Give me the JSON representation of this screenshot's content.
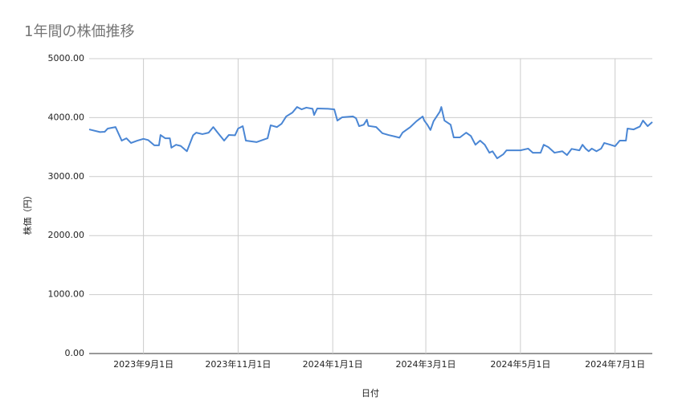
{
  "chart_data": {
    "type": "line",
    "title": "1年間の株価推移",
    "x_label": "日付",
    "y_label": "株価（円）",
    "x": [
      "2023-07-28",
      "2023-08-04",
      "2023-08-07",
      "2023-08-09",
      "2023-08-14",
      "2023-08-18",
      "2023-08-21",
      "2023-08-24",
      "2023-08-28",
      "2023-09-01",
      "2023-09-04",
      "2023-09-08",
      "2023-09-11",
      "2023-09-12",
      "2023-09-15",
      "2023-09-18",
      "2023-09-19",
      "2023-09-22",
      "2023-09-25",
      "2023-09-29",
      "2023-10-03",
      "2023-10-05",
      "2023-10-09",
      "2023-10-13",
      "2023-10-16",
      "2023-10-19",
      "2023-10-23",
      "2023-10-26",
      "2023-10-30",
      "2023-11-01",
      "2023-11-04",
      "2023-11-06",
      "2023-11-13",
      "2023-11-20",
      "2023-11-22",
      "2023-11-26",
      "2023-11-29",
      "2023-12-02",
      "2023-12-06",
      "2023-12-09",
      "2023-12-12",
      "2023-12-15",
      "2023-12-19",
      "2023-12-20",
      "2023-12-22",
      "2023-12-29",
      "2024-01-02",
      "2024-01-04",
      "2024-01-07",
      "2024-01-14",
      "2024-01-16",
      "2024-01-18",
      "2024-01-21",
      "2024-01-23",
      "2024-01-24",
      "2024-01-29",
      "2024-02-02",
      "2024-02-06",
      "2024-02-10",
      "2024-02-13",
      "2024-02-15",
      "2024-02-20",
      "2024-02-24",
      "2024-02-28",
      "2024-02-29",
      "2024-03-02",
      "2024-03-04",
      "2024-03-06",
      "2024-03-10",
      "2024-03-11",
      "2024-03-13",
      "2024-03-17",
      "2024-03-19",
      "2024-03-23",
      "2024-03-27",
      "2024-03-30",
      "2024-04-02",
      "2024-04-05",
      "2024-04-08",
      "2024-04-11",
      "2024-04-13",
      "2024-04-16",
      "2024-04-20",
      "2024-04-22",
      "2024-05-01",
      "2024-05-06",
      "2024-05-09",
      "2024-05-14",
      "2024-05-16",
      "2024-05-19",
      "2024-05-23",
      "2024-05-28",
      "2024-05-31",
      "2024-06-03",
      "2024-06-08",
      "2024-06-10",
      "2024-06-12",
      "2024-06-14",
      "2024-06-16",
      "2024-06-19",
      "2024-06-22",
      "2024-06-24",
      "2024-06-28",
      "2024-07-01",
      "2024-07-04",
      "2024-07-08",
      "2024-07-09",
      "2024-07-13",
      "2024-07-17",
      "2024-07-19",
      "2024-07-22",
      "2024-07-25"
    ],
    "series": [
      {
        "color": "#4a86d4",
        "values": [
          3800,
          3755,
          3760,
          3815,
          3840,
          3610,
          3650,
          3570,
          3610,
          3640,
          3620,
          3530,
          3530,
          3705,
          3650,
          3650,
          3490,
          3540,
          3520,
          3430,
          3700,
          3745,
          3720,
          3745,
          3840,
          3740,
          3610,
          3705,
          3700,
          3815,
          3855,
          3610,
          3585,
          3650,
          3870,
          3840,
          3895,
          4020,
          4085,
          4180,
          4140,
          4170,
          4150,
          4045,
          4155,
          4150,
          4140,
          3950,
          4005,
          4020,
          3990,
          3855,
          3880,
          3965,
          3860,
          3840,
          3735,
          3705,
          3680,
          3660,
          3745,
          3840,
          3940,
          4020,
          3950,
          3880,
          3790,
          3940,
          4100,
          4180,
          3950,
          3880,
          3665,
          3665,
          3745,
          3690,
          3540,
          3610,
          3540,
          3405,
          3430,
          3310,
          3380,
          3445,
          3445,
          3475,
          3405,
          3405,
          3540,
          3500,
          3405,
          3430,
          3365,
          3470,
          3445,
          3540,
          3475,
          3430,
          3475,
          3430,
          3475,
          3570,
          3540,
          3515,
          3610,
          3610,
          3815,
          3800,
          3850,
          3950,
          3855,
          3925
        ]
      }
    ],
    "xlim": [
      "2023-07-28",
      "2024-07-25"
    ],
    "xticks": [
      {
        "value": "2023-09-01",
        "label": "2023年9月1日"
      },
      {
        "value": "2023-11-01",
        "label": "2023年11月1日"
      },
      {
        "value": "2024-01-01",
        "label": "2024年1月1日"
      },
      {
        "value": "2024-03-01",
        "label": "2024年3月1日"
      },
      {
        "value": "2024-05-01",
        "label": "2024年5月1日"
      },
      {
        "value": "2024-07-01",
        "label": "2024年7月1日"
      }
    ],
    "ylim": [
      0,
      5000
    ],
    "yticks": [
      {
        "value": 0,
        "label": "0.00"
      },
      {
        "value": 1000,
        "label": "1000.00"
      },
      {
        "value": 2000,
        "label": "2000.00"
      },
      {
        "value": 3000,
        "label": "3000.00"
      },
      {
        "value": 4000,
        "label": "4000.00"
      },
      {
        "value": 5000,
        "label": "5000.00"
      }
    ],
    "grid": true
  }
}
